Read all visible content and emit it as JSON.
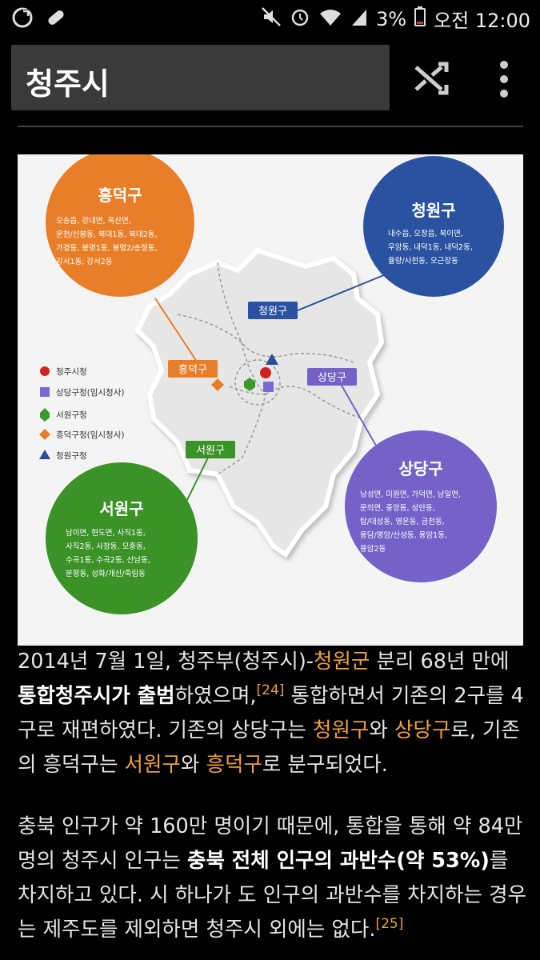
{
  "status_bar": {
    "battery_percent": "3%",
    "time": "오전 12:00"
  },
  "app_bar": {
    "title": "청주시",
    "shuffle_icon": "shuffle-icon",
    "menu_icon": "kebab-menu-icon"
  },
  "map": {
    "districts": {
      "heungdeok": {
        "name": "흥덕구",
        "areas": [
          "오송읍, 강내면, 옥산면,",
          "운천/신봉동, 복대1동, 복대2동,",
          "가경동, 봉명1동, 봉명2/송정동,",
          "강서1동, 강서2동"
        ]
      },
      "cheongwon": {
        "name": "청원구",
        "areas": [
          "내수읍, 오창읍, 북이면,",
          "우암동, 내덕1동, 내덕2동,",
          "율량/사천동, 오근장동"
        ]
      },
      "sangdang": {
        "name": "상당구",
        "areas": [
          "낭성면, 미원면, 가덕면, 남일면,",
          "문의면, 중앙동, 성안동,",
          "탑/대성동, 영운동, 금천동,",
          "용담/명암/산성동, 용암1동,",
          "용암2동"
        ]
      },
      "seowon": {
        "name": "서원구",
        "areas": [
          "남이면, 현도면, 사직1동,",
          "사직2동, 사창동, 모충동,",
          "수곡1동, 수곡2동, 산남동,",
          "분평동, 성화/개신/죽림동"
        ]
      }
    },
    "tags": {
      "cheongwon": "청원구",
      "heungdeok": "흥덕구",
      "sangdang": "상당구",
      "seowon": "서원구"
    },
    "legend": [
      {
        "label": "청주시청",
        "color": "#d42020",
        "shape": "circle"
      },
      {
        "label": "상당구청(임시청사)",
        "color": "#7b6bd0",
        "shape": "square"
      },
      {
        "label": "서원구청",
        "color": "#3a9a2a",
        "shape": "hexagon"
      },
      {
        "label": "흥덕구청(임시청사)",
        "color": "#e87e28",
        "shape": "diamond"
      },
      {
        "label": "청원구청",
        "color": "#2a4f9a",
        "shape": "triangle"
      }
    ],
    "colors": {
      "heungdeok": "#e87e28",
      "cheongwon": "#2a52a0",
      "sangdang": "#7462c8",
      "seowon": "#3b9227"
    }
  },
  "article": {
    "p1": {
      "s1": "2014년 7월 1일, 청주부(청주시)-",
      "link1": "청원군",
      "s2": " 분리 68년 만에 ",
      "b1": "통합청주시가 출범",
      "s3": "하였으며,",
      "ref1": "[24]",
      "s4": " 통합하면서 기존의 2구를 4구로 재편하였다. 기존의 상당구는 ",
      "link2": "청원구",
      "s5": "와 ",
      "link3": "상당구",
      "s6": "로, 기존의 흥덕구는 ",
      "link4": "서원구",
      "s7": "와 ",
      "link5": "흥덕구",
      "s8": "로 분구되었다."
    },
    "p2": {
      "s1": "충북 인구가 약 160만 명이기 때문에, 통합을 통해 약 84만 명의 청주시 인구는 ",
      "b1": "충북 전체 인구의 과반수(약 53%)",
      "s2": "를 차지하고 있다. 시 하나가 도 인구의 과반수를 차지하는 경우는 제주도를 제외하면 청주시 외에는 없다.",
      "ref1": "[25]"
    }
  }
}
